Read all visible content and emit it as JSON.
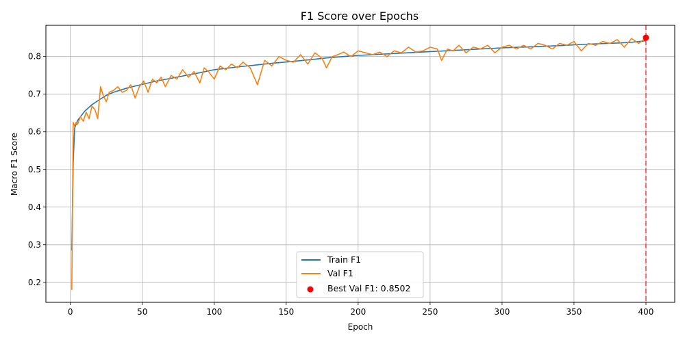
{
  "chart_data": {
    "type": "line",
    "title": "F1 Score over Epochs",
    "xlabel": "Epoch",
    "ylabel": "Macro F1 Score",
    "xlim": [
      -17,
      420
    ],
    "ylim": [
      0.147,
      0.883
    ],
    "xticks": [
      0,
      50,
      100,
      150,
      200,
      250,
      300,
      350,
      400
    ],
    "yticks": [
      0.2,
      0.3,
      0.4,
      0.5,
      0.6,
      0.7,
      0.8
    ],
    "ytick_labels": [
      "0.2",
      "0.3",
      "0.4",
      "0.5",
      "0.6",
      "0.7",
      "0.8"
    ],
    "grid": true,
    "legend_position": "lower-center",
    "series": [
      {
        "name": "Train F1",
        "color": "#1f77b4",
        "x": [
          1,
          2,
          3,
          5,
          8,
          10,
          15,
          20,
          25,
          30,
          40,
          50,
          60,
          75,
          90,
          100,
          120,
          140,
          160,
          180,
          200,
          220,
          240,
          260,
          280,
          300,
          320,
          340,
          360,
          380,
          390,
          395,
          400
        ],
        "values": [
          0.285,
          0.52,
          0.61,
          0.63,
          0.645,
          0.655,
          0.672,
          0.685,
          0.697,
          0.705,
          0.717,
          0.726,
          0.735,
          0.746,
          0.757,
          0.765,
          0.774,
          0.782,
          0.789,
          0.797,
          0.803,
          0.807,
          0.811,
          0.815,
          0.819,
          0.823,
          0.826,
          0.829,
          0.833,
          0.836,
          0.838,
          0.84,
          0.842
        ]
      },
      {
        "name": "Val F1",
        "color": "#ff7f0e",
        "x": [
          1,
          2,
          3,
          4,
          5,
          7,
          9,
          11,
          13,
          15,
          17,
          19,
          21,
          23,
          25,
          27,
          30,
          33,
          36,
          39,
          42,
          45,
          48,
          51,
          54,
          57,
          60,
          63,
          66,
          70,
          74,
          78,
          82,
          86,
          90,
          93,
          96,
          100,
          104,
          108,
          112,
          116,
          120,
          125,
          130,
          135,
          140,
          145,
          150,
          155,
          160,
          165,
          170,
          175,
          178,
          182,
          186,
          190,
          195,
          200,
          205,
          210,
          215,
          220,
          225,
          230,
          235,
          240,
          245,
          250,
          255,
          258,
          262,
          266,
          270,
          275,
          280,
          285,
          290,
          295,
          300,
          305,
          310,
          315,
          320,
          325,
          330,
          335,
          340,
          345,
          350,
          355,
          360,
          365,
          370,
          375,
          380,
          385,
          390,
          395,
          400
        ],
        "values": [
          0.18,
          0.625,
          0.615,
          0.625,
          0.62,
          0.64,
          0.628,
          0.652,
          0.635,
          0.668,
          0.66,
          0.635,
          0.72,
          0.695,
          0.68,
          0.705,
          0.71,
          0.72,
          0.705,
          0.71,
          0.725,
          0.69,
          0.72,
          0.735,
          0.705,
          0.74,
          0.73,
          0.745,
          0.72,
          0.75,
          0.74,
          0.765,
          0.745,
          0.76,
          0.73,
          0.77,
          0.76,
          0.74,
          0.775,
          0.765,
          0.78,
          0.77,
          0.785,
          0.77,
          0.725,
          0.79,
          0.775,
          0.8,
          0.79,
          0.785,
          0.805,
          0.78,
          0.81,
          0.795,
          0.77,
          0.8,
          0.805,
          0.812,
          0.8,
          0.815,
          0.81,
          0.805,
          0.812,
          0.8,
          0.815,
          0.81,
          0.825,
          0.812,
          0.815,
          0.825,
          0.82,
          0.79,
          0.82,
          0.815,
          0.83,
          0.81,
          0.825,
          0.82,
          0.83,
          0.81,
          0.825,
          0.83,
          0.82,
          0.83,
          0.82,
          0.835,
          0.83,
          0.82,
          0.835,
          0.83,
          0.84,
          0.815,
          0.835,
          0.83,
          0.84,
          0.835,
          0.845,
          0.825,
          0.848,
          0.835,
          0.85
        ]
      }
    ],
    "best_point": {
      "label": "Best Val F1: 0.8502",
      "x": 400,
      "y": 0.8502,
      "color": "#ff0000"
    },
    "vline": {
      "x": 400,
      "color": "#ff0000",
      "style": "dashed"
    }
  }
}
